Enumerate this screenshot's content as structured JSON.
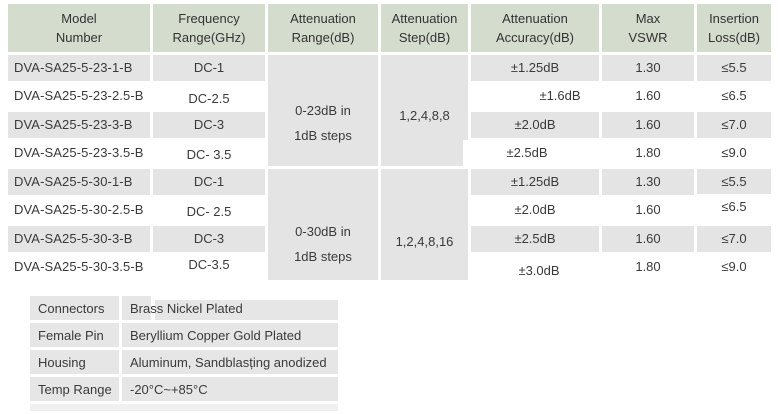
{
  "colors": {
    "header_bg": "#d4dcce",
    "row_shade": "#e4e4e4",
    "row_alt": "#ffffff",
    "props_row_bg": "#e6e6e6",
    "text": "#3a3a3a"
  },
  "spec_table": {
    "headers": [
      "Model\nNumber",
      "Frequency\nRange(GHz)",
      "Attenuation\nRange(dB)",
      "Attenuation\nStep(dB)",
      "Attenuation\nAccuracy(dB)",
      "Max\nVSWR",
      "Insertion\nLoss(dB)"
    ],
    "merged": {
      "range_group1": "0-23dB in\n1dB steps",
      "step_group1": "1,2,4,8,8",
      "range_group2": "0-30dB in\n1dB steps",
      "step_group2": "1,2,4,8,16"
    },
    "rows": [
      {
        "model": "DVA-SA25-5-23-1-B",
        "freq": "DC-1",
        "accuracy": "±1.25dB",
        "vswr": "1.30",
        "loss": "≤5.5"
      },
      {
        "model": "DVA-SA25-5-23-2.5-B",
        "freq": "DC-2.5",
        "accuracy": "±1.6dB",
        "vswr": "1.60",
        "loss": "≤6.5"
      },
      {
        "model": "DVA-SA25-5-23-3-B",
        "freq": "DC-3",
        "accuracy": "±2.0dB",
        "vswr": "1.60",
        "loss": "≤7.0"
      },
      {
        "model": "DVA-SA25-5-23-3.5-B",
        "freq": "DC- 3.5",
        "accuracy": "±2.5dB",
        "vswr": "1.80",
        "loss": "≤9.0"
      },
      {
        "model": "DVA-SA25-5-30-1-B",
        "freq": "DC-1",
        "accuracy": "±1.25dB",
        "vswr": "1.30",
        "loss": "≤5.5"
      },
      {
        "model": "DVA-SA25-5-30-2.5-B",
        "freq": "DC- 2.5",
        "accuracy": "±2.0dB",
        "vswr": "1.60",
        "loss": "≤6.5"
      },
      {
        "model": "DVA-SA25-5-30-3-B",
        "freq": "DC-3",
        "accuracy": "±2.5dB",
        "vswr": "1.60",
        "loss": "≤7.0"
      },
      {
        "model": "DVA-SA25-5-30-3.5-B",
        "freq": "DC-3.5",
        "accuracy": "±3.0dB",
        "vswr": "1.80",
        "loss": "≤9.0"
      }
    ]
  },
  "properties_table": {
    "rows": [
      {
        "label": "Connectors",
        "value": "Brass Nickel Plated"
      },
      {
        "label": "Female Pin",
        "value": "Beryllium Copper Gold Plated"
      },
      {
        "label": "Housing",
        "value": "Aluminum, Sandblasțing anodized"
      },
      {
        "label": "Temp Range",
        "value": "-20°C~+85°C"
      }
    ]
  }
}
